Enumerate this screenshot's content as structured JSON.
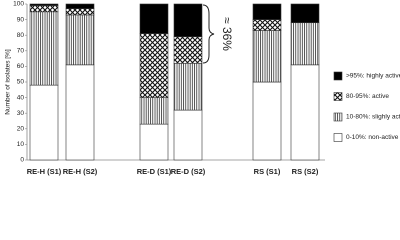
{
  "chart_data": {
    "type": "stacked_bar",
    "y_label": "Number of isolates [%]",
    "categories": [
      "RE-H (S1)",
      "RE-H (S2)",
      "RE-D (S1)",
      "RE-D (S2)",
      "RS (S1)",
      "RS (S2)"
    ],
    "series": [
      {
        "name": "0-10%: non-active",
        "color": "#ffffff",
        "pattern": "none",
        "values": [
          48,
          61,
          23,
          32,
          50,
          61
        ]
      },
      {
        "name": "10-80%: slighly active",
        "color": "#ffffff",
        "pattern": "vertical",
        "values": [
          47,
          32,
          17,
          30,
          33,
          27
        ]
      },
      {
        "name": "80-95%: active",
        "color": "#ffffff",
        "pattern": "crosshatch",
        "values": [
          4,
          4,
          41,
          17,
          7,
          0
        ]
      },
      {
        "name": ">95%: highly active",
        "color": "#000000",
        "pattern": "none",
        "values": [
          1,
          3,
          19,
          21,
          10,
          12
        ]
      }
    ],
    "annotation": "≈ 36%",
    "ylim": [
      0,
      100
    ],
    "yticks": [
      0,
      10,
      20,
      30,
      40,
      50,
      60,
      70,
      80,
      90,
      100
    ]
  }
}
